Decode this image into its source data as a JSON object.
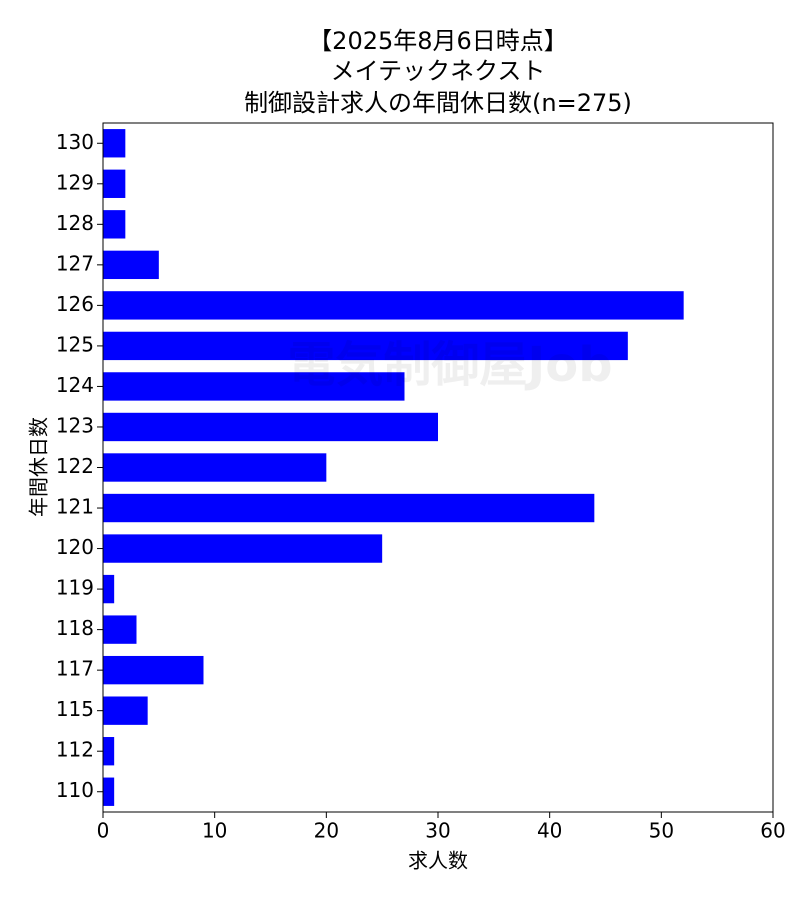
{
  "chart_data": {
    "type": "barh",
    "title": [
      "【2025年8月6日時点】",
      "メイテックネクスト",
      "制御設計求人の年間休日数(n=275)"
    ],
    "xlabel": "求人数",
    "ylabel": "年間休日数",
    "watermark": "電気制御屋Job",
    "categories": [
      "130",
      "129",
      "128",
      "127",
      "126",
      "125",
      "124",
      "123",
      "122",
      "121",
      "120",
      "119",
      "118",
      "117",
      "115",
      "112",
      "110"
    ],
    "values": [
      2,
      2,
      2,
      5,
      52,
      47,
      27,
      30,
      20,
      44,
      25,
      1,
      3,
      9,
      4,
      1,
      1
    ],
    "color": "#0000ff",
    "xlim": [
      0,
      60
    ],
    "xticks": [
      0,
      10,
      20,
      30,
      40,
      50,
      60
    ],
    "grid": false
  }
}
